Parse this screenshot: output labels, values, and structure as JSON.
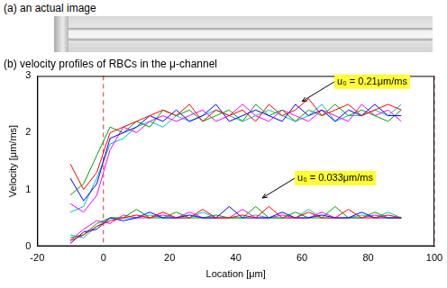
{
  "panel_a": {
    "title": "(a) an actual image"
  },
  "chart_data": {
    "type": "line",
    "title": "(b) velocity profiles of RBCs in the μ-channel",
    "x_label": "Location [μm]",
    "y_label": "Velocity [μm/ms]",
    "x": [
      -10,
      -6,
      -2,
      2,
      6,
      10,
      14,
      18,
      22,
      26,
      30,
      34,
      38,
      42,
      46,
      50,
      54,
      58,
      62,
      66,
      70,
      74,
      78,
      82,
      86,
      90
    ],
    "series": [
      {
        "color": "#ff0000",
        "values": [
          1.45,
          1.0,
          1.3,
          2.0,
          2.1,
          2.2,
          2.3,
          2.4,
          2.3,
          2.5,
          2.2,
          2.4,
          2.3,
          2.4,
          2.2,
          2.5,
          2.3,
          2.4,
          2.6,
          2.3,
          2.4,
          2.5,
          2.3,
          2.4,
          2.5,
          2.4
        ]
      },
      {
        "color": "#0000ff",
        "values": [
          1.2,
          0.8,
          1.1,
          1.9,
          2.0,
          2.1,
          2.3,
          2.2,
          2.4,
          2.2,
          2.3,
          2.5,
          2.2,
          2.3,
          2.4,
          2.3,
          2.2,
          2.5,
          2.3,
          2.4,
          2.2,
          2.4,
          2.3,
          2.5,
          2.3,
          2.3
        ]
      },
      {
        "color": "#00a000",
        "values": [
          0.9,
          1.1,
          1.6,
          2.1,
          2.0,
          2.2,
          2.1,
          2.4,
          2.3,
          2.4,
          2.2,
          2.3,
          2.4,
          2.2,
          2.5,
          2.3,
          2.4,
          2.2,
          2.4,
          2.3,
          2.5,
          2.3,
          2.4,
          2.3,
          2.2,
          2.4
        ]
      },
      {
        "color": "#ff00ff",
        "values": [
          0.75,
          0.6,
          0.9,
          1.7,
          2.1,
          2.0,
          2.2,
          2.3,
          2.2,
          2.3,
          2.4,
          2.2,
          2.3,
          2.5,
          2.3,
          2.2,
          2.4,
          2.3,
          2.2,
          2.4,
          2.3,
          2.2,
          2.5,
          2.3,
          2.4,
          2.2
        ]
      },
      {
        "color": "#00bfbf",
        "values": [
          0.6,
          0.7,
          1.2,
          1.8,
          1.9,
          2.1,
          2.2,
          2.1,
          2.3,
          2.2,
          2.3,
          2.4,
          2.3,
          2.2,
          2.3,
          2.4,
          2.3,
          2.2,
          2.3,
          2.5,
          2.2,
          2.3,
          2.3,
          2.4,
          2.3,
          2.5
        ]
      },
      {
        "color": "#ff0000",
        "values": [
          0.1,
          0.2,
          0.35,
          0.45,
          0.5,
          0.55,
          0.5,
          0.6,
          0.5,
          0.5,
          0.65,
          0.5,
          0.5,
          0.55,
          0.5,
          0.7,
          0.5,
          0.5,
          0.6,
          0.5,
          0.5,
          0.65,
          0.5,
          0.5,
          0.55,
          0.5
        ]
      },
      {
        "color": "#0000ff",
        "values": [
          0.05,
          0.25,
          0.3,
          0.5,
          0.45,
          0.5,
          0.6,
          0.5,
          0.5,
          0.55,
          0.5,
          0.5,
          0.7,
          0.5,
          0.5,
          0.5,
          0.6,
          0.5,
          0.5,
          0.55,
          0.5,
          0.5,
          0.6,
          0.5,
          0.5,
          0.5
        ]
      },
      {
        "color": "#00a000",
        "values": [
          0.15,
          0.2,
          0.4,
          0.5,
          0.5,
          0.65,
          0.5,
          0.5,
          0.6,
          0.5,
          0.5,
          0.55,
          0.5,
          0.5,
          0.7,
          0.5,
          0.5,
          0.6,
          0.5,
          0.5,
          0.7,
          0.5,
          0.5,
          0.6,
          0.5,
          0.5
        ]
      },
      {
        "color": "#ff00ff",
        "values": [
          0.1,
          0.3,
          0.45,
          0.4,
          0.55,
          0.5,
          0.5,
          0.55,
          0.5,
          0.6,
          0.5,
          0.5,
          0.5,
          0.65,
          0.5,
          0.5,
          0.55,
          0.5,
          0.5,
          0.6,
          0.5,
          0.5,
          0.5,
          0.55,
          0.5,
          0.5
        ]
      },
      {
        "color": "#00bfbf",
        "values": [
          0.2,
          0.15,
          0.35,
          0.5,
          0.5,
          0.5,
          0.55,
          0.5,
          0.5,
          0.5,
          0.6,
          0.5,
          0.5,
          0.5,
          0.55,
          0.5,
          0.5,
          0.5,
          0.65,
          0.5,
          0.5,
          0.5,
          0.55,
          0.5,
          0.6,
          0.5
        ]
      }
    ],
    "xlim": [
      -20,
      100
    ],
    "ylim": [
      0,
      3
    ],
    "xticks": [
      -20,
      0,
      20,
      40,
      60,
      80,
      100
    ],
    "yticks": [
      0,
      1,
      2,
      3
    ],
    "grid": false,
    "vlines": [
      0,
      100
    ],
    "annotations": [
      {
        "text": "u₀ = 0.21μm/ms",
        "x": 60,
        "y": 2.55
      },
      {
        "text": "u₀ = 0.033μm/ms",
        "x": 48,
        "y": 0.85
      }
    ]
  }
}
